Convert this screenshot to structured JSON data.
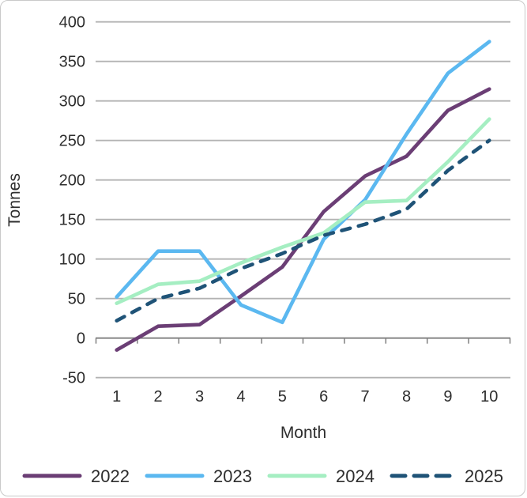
{
  "chart_data": {
    "type": "line",
    "title": "",
    "xlabel": "Month",
    "ylabel": "Tonnes",
    "x": [
      1,
      2,
      3,
      4,
      5,
      6,
      7,
      8,
      9,
      10
    ],
    "y_ticks": [
      400,
      350,
      300,
      250,
      200,
      150,
      100,
      50,
      0,
      -50
    ],
    "ylim": [
      -50,
      400
    ],
    "grid": "horizontal-only",
    "legend_position": "bottom",
    "series": [
      {
        "name": "2022",
        "color": "#6B3E75",
        "style": "solid",
        "values": [
          -15,
          15,
          17,
          53,
          90,
          160,
          205,
          230,
          288,
          315
        ]
      },
      {
        "name": "2023",
        "color": "#5BB8F0",
        "style": "solid",
        "values": [
          52,
          110,
          110,
          42,
          20,
          125,
          175,
          258,
          335,
          375
        ]
      },
      {
        "name": "2024",
        "color": "#A5EEC2",
        "style": "solid",
        "values": [
          44,
          68,
          72,
          95,
          115,
          133,
          172,
          174,
          223,
          277
        ]
      },
      {
        "name": "2025",
        "color": "#1F5377",
        "style": "dashed",
        "values": [
          22,
          50,
          63,
          88,
          107,
          130,
          144,
          163,
          212,
          250
        ]
      }
    ]
  },
  "style_colors": {
    "gridline": "#b3b3b3",
    "axis_line": "#808080",
    "text": "#2e2e2e",
    "background": "#ffffff"
  }
}
